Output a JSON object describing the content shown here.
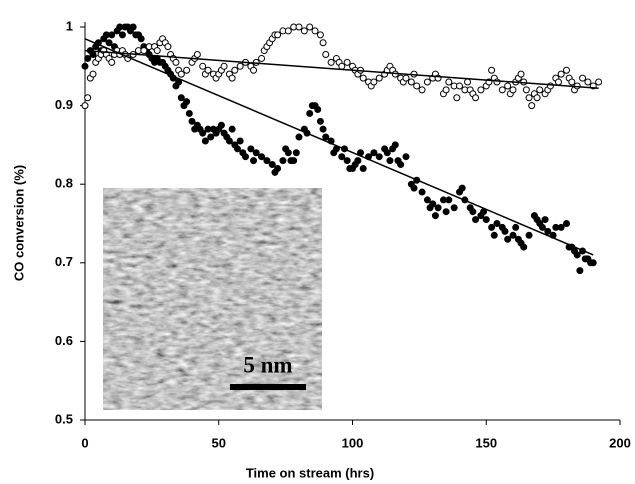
{
  "chart_data": {
    "type": "scatter",
    "xlabel": "Time on stream (hrs)",
    "ylabel": "CO conversion (%)",
    "xlim": [
      0,
      200
    ],
    "xticks": [
      0,
      50,
      100,
      150,
      200
    ],
    "ylim": [
      0.5,
      1
    ],
    "yticks": [
      0.5,
      0.6,
      0.7,
      0.8,
      0.9,
      1
    ],
    "series": [
      {
        "marker": "filled",
        "color": "#000000",
        "x": [
          0,
          1,
          2,
          3,
          4,
          5,
          6,
          7,
          8,
          9,
          10,
          11,
          12,
          13,
          14,
          15,
          16,
          17,
          18,
          19,
          20,
          21,
          22,
          23,
          24,
          25,
          26,
          27,
          28,
          29,
          30,
          31,
          32,
          33,
          34,
          35,
          36,
          37,
          38,
          39,
          40,
          41,
          42,
          43,
          44,
          45,
          46,
          47,
          48,
          49,
          50,
          51,
          52,
          53,
          54,
          55,
          56,
          57,
          58,
          59,
          60,
          62,
          63,
          64,
          66,
          68,
          70,
          71,
          72,
          74,
          75,
          76,
          77,
          78,
          79,
          80,
          82,
          83,
          84,
          85,
          86,
          87,
          88,
          89,
          90,
          92,
          93,
          94,
          96,
          97,
          98,
          99,
          100,
          101,
          102,
          103,
          104,
          106,
          108,
          110,
          112,
          113,
          114,
          115,
          116,
          117,
          118,
          120,
          122,
          123,
          124,
          126,
          128,
          129,
          130,
          131,
          132,
          134,
          135,
          136,
          138,
          140,
          141,
          142,
          144,
          145,
          146,
          148,
          149,
          150,
          152,
          153,
          154,
          156,
          157,
          158,
          160,
          161,
          162,
          163,
          164,
          166,
          168,
          169,
          170,
          171,
          172,
          173,
          175,
          176,
          178,
          180,
          181,
          182,
          183,
          184,
          185,
          186,
          187,
          188,
          189,
          190
        ],
        "values": [
          0.95,
          0.96,
          0.97,
          0.965,
          0.975,
          0.98,
          0.97,
          0.985,
          0.99,
          0.98,
          0.99,
          0.975,
          0.995,
          1.0,
          0.99,
          1.0,
          1.0,
          0.995,
          1.0,
          0.99,
          0.99,
          0.985,
          0.975,
          0.97,
          0.965,
          0.96,
          0.955,
          0.96,
          0.955,
          0.955,
          0.95,
          0.945,
          0.94,
          0.935,
          0.925,
          0.93,
          0.91,
          0.9,
          0.905,
          0.89,
          0.88,
          0.87,
          0.875,
          0.87,
          0.865,
          0.855,
          0.87,
          0.86,
          0.87,
          0.865,
          0.87,
          0.875,
          0.865,
          0.86,
          0.855,
          0.87,
          0.85,
          0.845,
          0.855,
          0.84,
          0.835,
          0.845,
          0.83,
          0.84,
          0.835,
          0.83,
          0.825,
          0.815,
          0.82,
          0.83,
          0.845,
          0.84,
          0.83,
          0.83,
          0.84,
          0.86,
          0.87,
          0.865,
          0.89,
          0.9,
          0.9,
          0.895,
          0.88,
          0.87,
          0.86,
          0.855,
          0.84,
          0.845,
          0.835,
          0.845,
          0.83,
          0.82,
          0.82,
          0.825,
          0.83,
          0.84,
          0.82,
          0.835,
          0.84,
          0.835,
          0.845,
          0.84,
          0.83,
          0.845,
          0.85,
          0.83,
          0.825,
          0.835,
          0.8,
          0.795,
          0.805,
          0.79,
          0.78,
          0.77,
          0.775,
          0.76,
          0.77,
          0.78,
          0.765,
          0.78,
          0.77,
          0.79,
          0.795,
          0.78,
          0.77,
          0.765,
          0.755,
          0.76,
          0.765,
          0.755,
          0.745,
          0.735,
          0.75,
          0.745,
          0.74,
          0.73,
          0.735,
          0.745,
          0.73,
          0.725,
          0.72,
          0.735,
          0.76,
          0.755,
          0.75,
          0.745,
          0.755,
          0.74,
          0.735,
          0.745,
          0.745,
          0.75,
          0.72,
          0.72,
          0.715,
          0.71,
          0.69,
          0.715,
          0.705,
          0.705,
          0.7,
          0.7
        ]
      },
      {
        "marker": "open",
        "color": "#000000",
        "x": [
          0,
          1,
          2,
          3,
          4,
          5,
          6,
          7,
          8,
          9,
          10,
          11,
          12,
          13,
          14,
          15,
          16,
          18,
          20,
          22,
          24,
          26,
          27,
          28,
          29,
          30,
          31,
          32,
          33,
          34,
          35,
          36,
          38,
          40,
          41,
          42,
          44,
          45,
          46,
          48,
          49,
          50,
          51,
          52,
          54,
          55,
          56,
          58,
          60,
          62,
          63,
          64,
          66,
          67,
          68,
          69,
          70,
          71,
          72,
          74,
          76,
          78,
          80,
          82,
          84,
          86,
          88,
          89,
          90,
          92,
          94,
          95,
          96,
          98,
          100,
          101,
          102,
          103,
          104,
          106,
          107,
          108,
          110,
          112,
          113,
          114,
          115,
          116,
          118,
          119,
          120,
          122,
          123,
          124,
          126,
          128,
          130,
          131,
          132,
          134,
          135,
          136,
          138,
          139,
          140,
          142,
          143,
          144,
          145,
          146,
          148,
          150,
          151,
          152,
          153,
          154,
          156,
          158,
          159,
          160,
          161,
          162,
          163,
          164,
          165,
          166,
          167,
          168,
          169,
          170,
          172,
          173,
          174,
          176,
          177,
          178,
          180,
          181,
          182,
          183,
          184,
          186,
          188,
          190,
          192
        ],
        "values": [
          0.9,
          0.91,
          0.935,
          0.94,
          0.955,
          0.96,
          0.965,
          0.97,
          0.965,
          0.96,
          0.955,
          0.965,
          0.97,
          0.965,
          0.97,
          0.965,
          0.96,
          0.965,
          0.97,
          0.97,
          0.975,
          0.975,
          0.97,
          0.98,
          0.985,
          0.98,
          0.975,
          0.965,
          0.96,
          0.955,
          0.945,
          0.94,
          0.945,
          0.955,
          0.96,
          0.965,
          0.95,
          0.94,
          0.945,
          0.94,
          0.935,
          0.94,
          0.945,
          0.95,
          0.94,
          0.935,
          0.945,
          0.95,
          0.955,
          0.95,
          0.945,
          0.955,
          0.96,
          0.97,
          0.975,
          0.98,
          0.985,
          0.99,
          0.99,
          0.995,
          0.995,
          1.0,
          1.0,
          0.995,
          1.0,
          0.995,
          0.99,
          0.98,
          0.965,
          0.955,
          0.96,
          0.955,
          0.95,
          0.955,
          0.95,
          0.945,
          0.94,
          0.945,
          0.935,
          0.93,
          0.925,
          0.93,
          0.935,
          0.94,
          0.945,
          0.95,
          0.945,
          0.94,
          0.935,
          0.93,
          0.935,
          0.93,
          0.94,
          0.925,
          0.92,
          0.93,
          0.935,
          0.94,
          0.935,
          0.915,
          0.92,
          0.93,
          0.925,
          0.91,
          0.925,
          0.92,
          0.93,
          0.92,
          0.915,
          0.91,
          0.92,
          0.925,
          0.93,
          0.945,
          0.935,
          0.93,
          0.92,
          0.925,
          0.915,
          0.92,
          0.93,
          0.935,
          0.94,
          0.93,
          0.92,
          0.91,
          0.9,
          0.915,
          0.91,
          0.92,
          0.915,
          0.92,
          0.925,
          0.935,
          0.93,
          0.94,
          0.945,
          0.935,
          0.93,
          0.92,
          0.925,
          0.935,
          0.93,
          0.925,
          0.93
        ]
      }
    ],
    "trendlines": [
      {
        "x": [
          0,
          190
        ],
        "values": [
          0.985,
          0.71
        ]
      },
      {
        "x": [
          0,
          192
        ],
        "values": [
          0.97,
          0.922
        ]
      }
    ],
    "inset_label": "5 nm"
  }
}
